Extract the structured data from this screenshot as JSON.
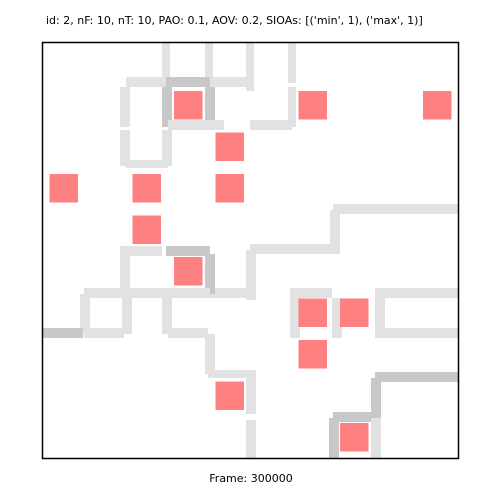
{
  "title": "id: 2, nF: 10, nT: 10, PAO: 0.1, AOV: 0.2, SIOAs: [('min', 1), ('max', 1)]",
  "frame_label": "Frame: 300000",
  "colors": {
    "background": "#ffffff",
    "border": "#000000",
    "facility": "#ff8080",
    "trail_light": "#e2e2e2",
    "trail_dark": "#c8c8c8"
  },
  "grid": {
    "cells": 10,
    "facilities": [
      [
        3,
        1
      ],
      [
        6,
        1
      ],
      [
        9,
        1
      ],
      [
        4,
        2
      ],
      [
        0,
        3
      ],
      [
        2,
        3
      ],
      [
        4,
        3
      ],
      [
        2,
        4
      ],
      [
        3,
        5
      ],
      [
        6,
        6
      ],
      [
        7,
        6
      ],
      [
        6,
        7
      ],
      [
        4,
        8
      ],
      [
        7,
        9
      ]
    ]
  }
}
